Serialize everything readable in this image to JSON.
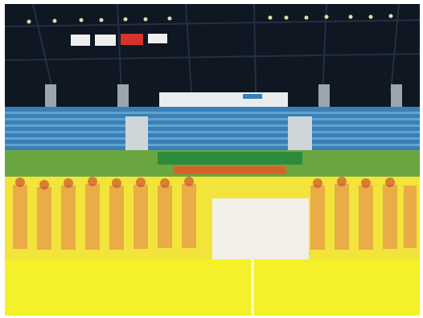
{
  "scene": {
    "description_visible_text": "",
    "colors": {
      "roof_dark": "#0f1722",
      "stand_blue": "#3a7fb6",
      "stand_blue_light": "#6fb4dd",
      "seat_green": "#6aa640",
      "banner_green": "#2f8b3c",
      "row_orange": "#d9622c",
      "crowd_yellow": "#f2e43a",
      "pitch_yellow": "#f4f02a",
      "white_banner": "#f2efe7",
      "flag_red": "#d6332b",
      "flag_white": "#efefef"
    },
    "icons": {
      "stadium": "stadium-photo",
      "flags": "flag-icon"
    }
  }
}
